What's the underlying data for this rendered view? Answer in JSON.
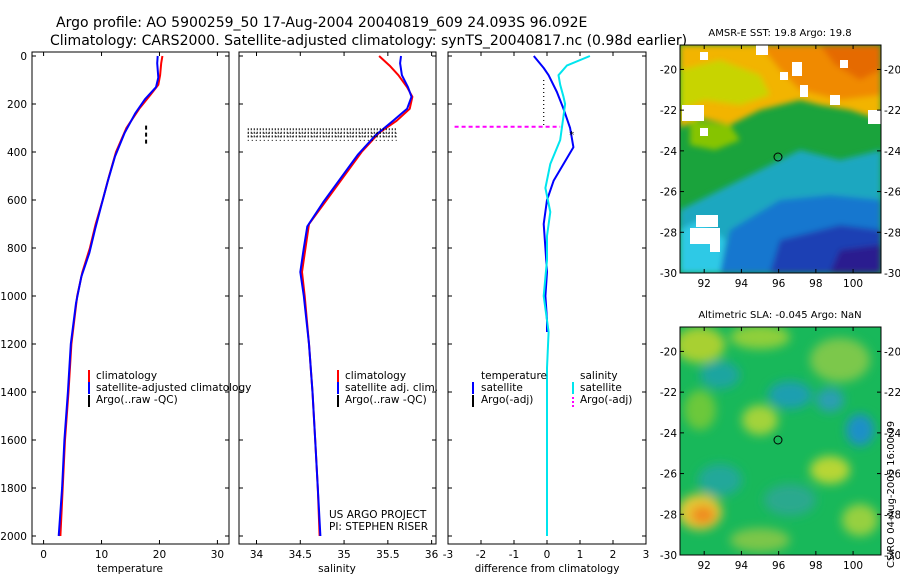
{
  "figure": {
    "title_line1": "Argo profile: AO 5900259_50 17-Aug-2004 20040819_609 24.093S 96.092E",
    "title_line2": "Climatology: CARS2000. Satellite-adjusted climatology: synTS_20040817.nc (0.98d earlier)",
    "credit_line1": "US ARGO PROJECT",
    "credit_line2": "PI: STEPHEN RISER",
    "side_stamp": "CSIRO 04-Aug-2005 16:00:09"
  },
  "colors": {
    "climatology": "#ff0000",
    "satellite": "#0000ff",
    "salinity_satellite": "#00e5ee",
    "salinity_argo": "#ff00ff",
    "argo": "#000000"
  },
  "chart_data": [
    {
      "type": "line",
      "name": "temperature",
      "xlabel": "temperature",
      "ylabel": "",
      "xlim": [
        -2,
        32
      ],
      "ylim": [
        2000,
        0
      ],
      "xticks": [
        0,
        10,
        20,
        30
      ],
      "yticks": [
        0,
        200,
        400,
        600,
        800,
        1000,
        1200,
        1400,
        1600,
        1800,
        2000
      ],
      "legend": [
        "climatology",
        "satellite-adjusted climatology",
        "Argo(..raw -QC)"
      ],
      "series": [
        {
          "name": "climatology",
          "color": "#ff0000",
          "points": [
            [
              20.5,
              0
            ],
            [
              20.3,
              30
            ],
            [
              20.1,
              80
            ],
            [
              19.8,
              120
            ],
            [
              18.5,
              160
            ],
            [
              16.5,
              220
            ],
            [
              14.3,
              300
            ],
            [
              12.5,
              400
            ],
            [
              11.3,
              500
            ],
            [
              10.2,
              600
            ],
            [
              9,
              700
            ],
            [
              8,
              800
            ],
            [
              6.7,
              900
            ],
            [
              5.8,
              1000
            ],
            [
              4.8,
              1200
            ],
            [
              4.3,
              1400
            ],
            [
              3.7,
              1600
            ],
            [
              3.3,
              1800
            ],
            [
              2.9,
              2000
            ]
          ]
        },
        {
          "name": "satellite-adjusted climatology",
          "color": "#0000ff",
          "points": [
            [
              19.7,
              0
            ],
            [
              19.6,
              30
            ],
            [
              19.8,
              90
            ],
            [
              19.4,
              130
            ],
            [
              17.5,
              180
            ],
            [
              15.8,
              240
            ],
            [
              14,
              320
            ],
            [
              12.3,
              420
            ],
            [
              11.1,
              520
            ],
            [
              10,
              620
            ],
            [
              8.9,
              720
            ],
            [
              7.9,
              820
            ],
            [
              6.5,
              920
            ],
            [
              5.6,
              1030
            ],
            [
              4.7,
              1200
            ],
            [
              4.2,
              1400
            ],
            [
              3.6,
              1600
            ],
            [
              3.2,
              1800
            ],
            [
              2.6,
              2000
            ]
          ]
        },
        {
          "name": "Argo(..raw -QC)",
          "color": "#000000",
          "style": "dashed",
          "points": [
            [
              17.7,
              290
            ],
            [
              17.7,
              370
            ]
          ]
        }
      ]
    },
    {
      "type": "line",
      "name": "salinity",
      "xlabel": "salinity",
      "ylabel": "",
      "xlim": [
        33.8,
        36.05
      ],
      "ylim": [
        2000,
        0
      ],
      "xticks": [
        34,
        34.5,
        35,
        35.5,
        36
      ],
      "legend": [
        "climatology",
        "satellite adj. clim.",
        "Argo(..raw -QC)"
      ],
      "series": [
        {
          "name": "climatology",
          "color": "#ff0000",
          "points": [
            [
              35.4,
              0
            ],
            [
              35.52,
              40
            ],
            [
              35.62,
              80
            ],
            [
              35.72,
              130
            ],
            [
              35.78,
              170
            ],
            [
              35.75,
              220
            ],
            [
              35.6,
              270
            ],
            [
              35.4,
              320
            ],
            [
              35.2,
              400
            ],
            [
              35,
              500
            ],
            [
              34.8,
              600
            ],
            [
              34.6,
              700
            ],
            [
              34.56,
              800
            ],
            [
              34.52,
              900
            ],
            [
              34.55,
              1000
            ],
            [
              34.6,
              1200
            ],
            [
              34.64,
              1400
            ],
            [
              34.67,
              1600
            ],
            [
              34.7,
              1800
            ],
            [
              34.72,
              2000
            ]
          ]
        },
        {
          "name": "satellite adj. clim.",
          "color": "#0000ff",
          "points": [
            [
              35.65,
              0
            ],
            [
              35.64,
              30
            ],
            [
              35.66,
              80
            ],
            [
              35.73,
              130
            ],
            [
              35.77,
              170
            ],
            [
              35.72,
              220
            ],
            [
              35.56,
              270
            ],
            [
              35.36,
              330
            ],
            [
              35.16,
              410
            ],
            [
              34.96,
              510
            ],
            [
              34.76,
              610
            ],
            [
              34.58,
              710
            ],
            [
              34.54,
              800
            ],
            [
              34.5,
              900
            ],
            [
              34.54,
              1000
            ],
            [
              34.6,
              1200
            ],
            [
              34.64,
              1400
            ],
            [
              34.67,
              1600
            ],
            [
              34.7,
              1800
            ],
            [
              34.73,
              2000
            ]
          ]
        },
        {
          "name": "Argo(..raw -QC)",
          "color": "#000000",
          "style": "dotted-band",
          "points": [
            [
              33.9,
              305
            ],
            [
              35.6,
              305
            ],
            [
              33.9,
              320
            ],
            [
              35.6,
              320
            ],
            [
              33.9,
              335
            ],
            [
              35.6,
              335
            ]
          ]
        }
      ]
    },
    {
      "type": "line",
      "name": "difference",
      "xlabel": "difference from climatology",
      "ylabel": "",
      "xlim": [
        -3,
        3
      ],
      "ylim": [
        2000,
        0
      ],
      "xticks": [
        -3,
        -2,
        -1,
        0,
        1,
        2,
        3
      ],
      "legend": [
        "temperature",
        "satellite",
        "Argo(-adj)",
        "salinity",
        "satellite",
        "Argo(-adj)"
      ],
      "series": [
        {
          "name": "temperature satellite",
          "color": "#0000ff",
          "points": [
            [
              -0.4,
              0
            ],
            [
              -0.1,
              50
            ],
            [
              0.05,
              80
            ],
            [
              0.3,
              150
            ],
            [
              0.5,
              220
            ],
            [
              0.7,
              300
            ],
            [
              0.8,
              380
            ],
            [
              0.5,
              450
            ],
            [
              0.2,
              520
            ],
            [
              0,
              600
            ],
            [
              -0.1,
              700
            ],
            [
              -0.05,
              800
            ],
            [
              0,
              900
            ],
            [
              -0.05,
              1000
            ],
            [
              0,
              1100
            ],
            [
              0,
              1150
            ]
          ]
        },
        {
          "name": "salinity satellite",
          "color": "#00e5ee",
          "points": [
            [
              1.3,
              0
            ],
            [
              0.6,
              40
            ],
            [
              0.35,
              80
            ],
            [
              0.4,
              120
            ],
            [
              0.5,
              170
            ],
            [
              0.55,
              200
            ],
            [
              0.5,
              250
            ],
            [
              0.4,
              350
            ],
            [
              0.1,
              450
            ],
            [
              -0.05,
              550
            ],
            [
              0.1,
              650
            ],
            [
              0,
              750
            ],
            [
              0,
              850
            ],
            [
              -0.1,
              1000
            ],
            [
              0.05,
              1150
            ],
            [
              0,
              1300
            ],
            [
              0,
              1600
            ],
            [
              0,
              2000
            ]
          ]
        },
        {
          "name": "salinity Argo(-adj)",
          "color": "#ff00ff",
          "style": "dashed",
          "points": [
            [
              -2.8,
              295
            ],
            [
              0.4,
              295
            ]
          ]
        },
        {
          "name": "temperature Argo(-adj)",
          "color": "#000000",
          "style": "dotted",
          "points": [
            [
              -0.1,
              100
            ],
            [
              -0.1,
              300
            ]
          ]
        }
      ]
    },
    {
      "type": "heatmap",
      "name": "sst-map",
      "title": "AMSR-E SST: 19.8 Argo: 19.8",
      "xticks": [
        "92",
        "94",
        "96",
        "98",
        "100"
      ],
      "yticks": [
        "-20",
        "-22",
        "-24",
        "-26",
        "-28",
        "-30"
      ],
      "xlim": [
        90.7,
        101.5
      ],
      "ylim": [
        -30,
        -18.8
      ],
      "marker": [
        96.1,
        -24.1
      ]
    },
    {
      "type": "heatmap",
      "name": "sla-map",
      "title": "Altimetric SLA: -0.045 Argo: NaN",
      "xticks": [
        "92",
        "94",
        "96",
        "98",
        "100"
      ],
      "yticks": [
        "-20",
        "-22",
        "-24",
        "-26",
        "-28",
        "-30"
      ],
      "xlim": [
        90.7,
        101.5
      ],
      "ylim": [
        -30,
        -18.8
      ],
      "marker": [
        96.1,
        -24.1
      ]
    }
  ]
}
